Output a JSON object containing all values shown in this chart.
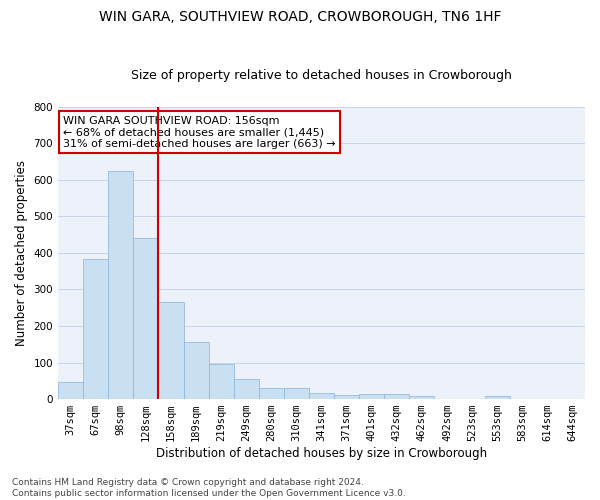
{
  "title": "WIN GARA, SOUTHVIEW ROAD, CROWBOROUGH, TN6 1HF",
  "subtitle": "Size of property relative to detached houses in Crowborough",
  "xlabel": "Distribution of detached houses by size in Crowborough",
  "ylabel": "Number of detached properties",
  "categories": [
    "37sqm",
    "67sqm",
    "98sqm",
    "128sqm",
    "158sqm",
    "189sqm",
    "219sqm",
    "249sqm",
    "280sqm",
    "310sqm",
    "341sqm",
    "371sqm",
    "401sqm",
    "432sqm",
    "462sqm",
    "492sqm",
    "523sqm",
    "553sqm",
    "583sqm",
    "614sqm",
    "644sqm"
  ],
  "values": [
    48,
    383,
    623,
    440,
    265,
    155,
    95,
    55,
    30,
    30,
    18,
    12,
    14,
    14,
    8,
    0,
    0,
    9,
    0,
    0,
    0
  ],
  "bar_color": "#c9dff2",
  "bar_edgecolor": "#8ab4d8",
  "vline_x": 3.5,
  "vline_color": "#cc0000",
  "annotation_text": "WIN GARA SOUTHVIEW ROAD: 156sqm\n← 68% of detached houses are smaller (1,445)\n31% of semi-detached houses are larger (663) →",
  "annotation_box_edgecolor": "#cc0000",
  "annotation_box_facecolor": "#ffffff",
  "ylim": [
    0,
    800
  ],
  "yticks": [
    0,
    100,
    200,
    300,
    400,
    500,
    600,
    700,
    800
  ],
  "grid_color": "#c8d4e8",
  "bg_color": "#edf1f9",
  "footnote": "Contains HM Land Registry data © Crown copyright and database right 2024.\nContains public sector information licensed under the Open Government Licence v3.0.",
  "title_fontsize": 10,
  "subtitle_fontsize": 9,
  "xlabel_fontsize": 8.5,
  "ylabel_fontsize": 8.5,
  "tick_fontsize": 7.5,
  "annotation_fontsize": 8,
  "footnote_fontsize": 6.5
}
